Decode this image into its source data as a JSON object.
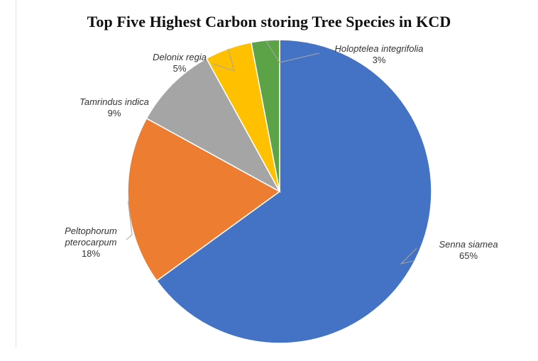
{
  "chart_data": {
    "type": "pie",
    "title": "Top Five Highest Carbon storing Tree Species in KCD",
    "slices": [
      {
        "label_lines": [
          "Senna siamea"
        ],
        "percent_label": "65%",
        "value": 65,
        "color": "#4472C4"
      },
      {
        "label_lines": [
          "Peltophorum",
          "pterocarpum"
        ],
        "percent_label": "18%",
        "value": 18,
        "color": "#ED7D31"
      },
      {
        "label_lines": [
          "Tamrindus indica"
        ],
        "percent_label": "9%",
        "value": 9,
        "color": "#A5A5A5"
      },
      {
        "label_lines": [
          "Delonix regia"
        ],
        "percent_label": "5%",
        "value": 5,
        "color": "#FFC000"
      },
      {
        "label_lines": [
          "Holoptelea integrifolia"
        ],
        "percent_label": "3%",
        "value": 3,
        "color": "#5BA346"
      }
    ],
    "start_angle": "12 o'clock",
    "direction": "clockwise",
    "legend": "none",
    "data_labels": "outside-with-leader-lines"
  }
}
